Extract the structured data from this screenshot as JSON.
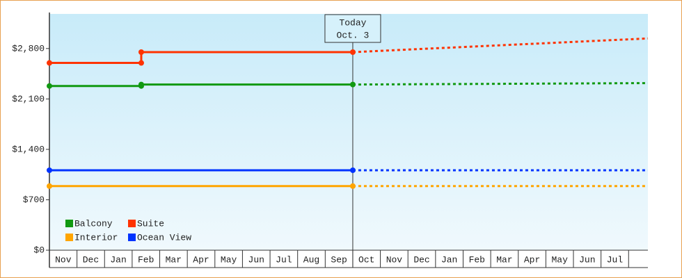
{
  "chart_data": {
    "type": "line",
    "xlim": [
      0,
      21.7
    ],
    "xticks": [
      {
        "value": 0.5,
        "label": "Nov"
      },
      {
        "value": 1.5,
        "label": "Dec"
      },
      {
        "value": 2.5,
        "label": "Jan"
      },
      {
        "value": 3.5,
        "label": "Feb"
      },
      {
        "value": 4.5,
        "label": "Mar"
      },
      {
        "value": 5.5,
        "label": "Apr"
      },
      {
        "value": 6.5,
        "label": "May"
      },
      {
        "value": 7.5,
        "label": "Jun"
      },
      {
        "value": 8.5,
        "label": "Jul"
      },
      {
        "value": 9.5,
        "label": "Aug"
      },
      {
        "value": 10.5,
        "label": "Sep"
      },
      {
        "value": 11.5,
        "label": "Oct"
      },
      {
        "value": 12.5,
        "label": "Nov"
      },
      {
        "value": 13.5,
        "label": "Dec"
      },
      {
        "value": 14.5,
        "label": "Jan"
      },
      {
        "value": 15.5,
        "label": "Feb"
      },
      {
        "value": 16.5,
        "label": "Mar"
      },
      {
        "value": 17.5,
        "label": "Apr"
      },
      {
        "value": 18.5,
        "label": "May"
      },
      {
        "value": 19.5,
        "label": "Jun"
      },
      {
        "value": 20.5,
        "label": "Jul"
      }
    ],
    "ylim": [
      0,
      3300
    ],
    "yticks": [
      {
        "value": 0,
        "label": "$0"
      },
      {
        "value": 700,
        "label": "$700"
      },
      {
        "value": 1400,
        "label": "$1,400"
      },
      {
        "value": 2100,
        "label": "$2,100"
      },
      {
        "value": 2800,
        "label": "$2,800"
      }
    ],
    "annotation": {
      "x": 11,
      "lines": [
        "Today",
        "Oct. 3"
      ]
    },
    "legend": "lower left",
    "series": [
      {
        "name": "Balcony",
        "color": "#119911",
        "x": [
          0,
          3.33,
          3.33,
          11
        ],
        "values": [
          2280,
          2280,
          2300,
          2300
        ],
        "forecast": {
          "x": [
            11,
            21.7
          ],
          "values": [
            2300,
            2320
          ]
        }
      },
      {
        "name": "Suite",
        "color": "#ff3300",
        "x": [
          0,
          3.33,
          3.33,
          11
        ],
        "values": [
          2600,
          2600,
          2750,
          2750
        ],
        "forecast": {
          "x": [
            11,
            21.7
          ],
          "values": [
            2750,
            2940
          ]
        }
      },
      {
        "name": "Interior",
        "color": "#ffa500",
        "x": [
          0,
          11
        ],
        "values": [
          890,
          890
        ],
        "forecast": {
          "x": [
            11,
            21.7
          ],
          "values": [
            890,
            890
          ]
        }
      },
      {
        "name": "Ocean View",
        "color": "#0033ff",
        "x": [
          0,
          11
        ],
        "values": [
          1110,
          1110
        ],
        "forecast": {
          "x": [
            11,
            21.7
          ],
          "values": [
            1110,
            1110
          ]
        }
      }
    ]
  }
}
